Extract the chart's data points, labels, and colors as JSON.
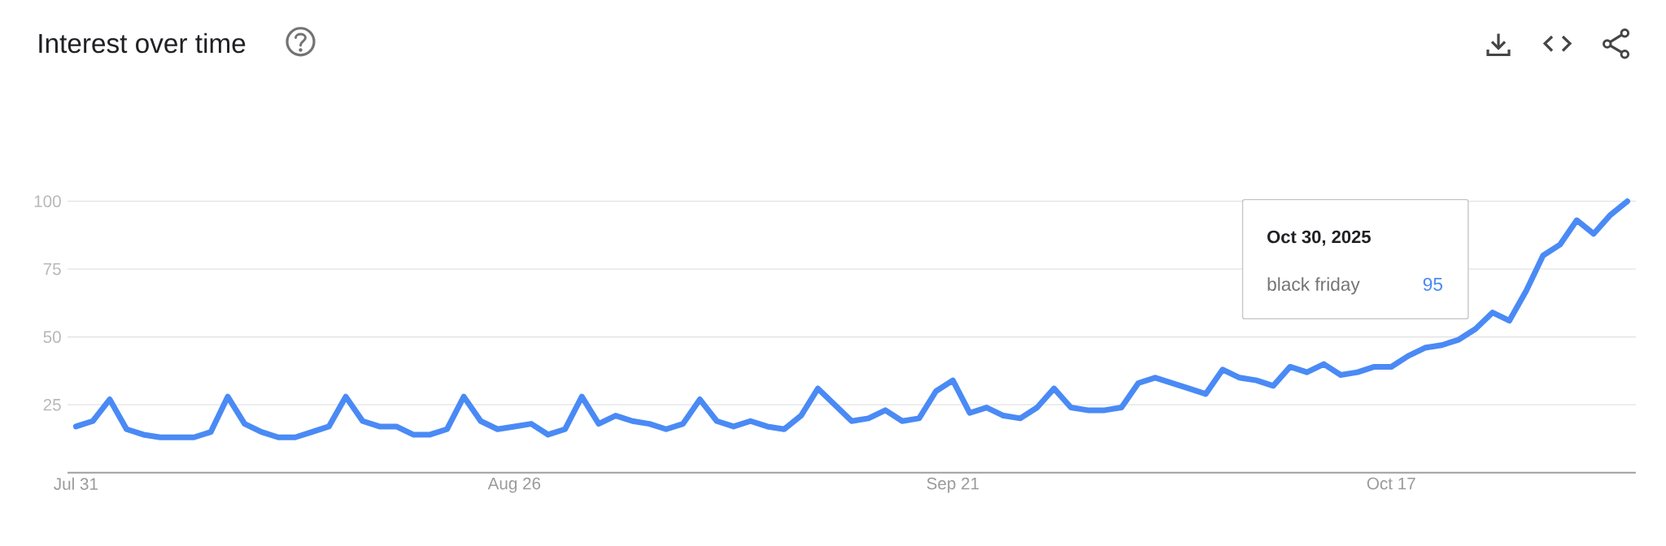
{
  "chart_data": {
    "type": "line",
    "title": "Interest over time",
    "x": [
      "2025-07-31",
      "2025-08-01",
      "2025-08-02",
      "2025-08-03",
      "2025-08-04",
      "2025-08-05",
      "2025-08-06",
      "2025-08-07",
      "2025-08-08",
      "2025-08-09",
      "2025-08-10",
      "2025-08-11",
      "2025-08-12",
      "2025-08-13",
      "2025-08-14",
      "2025-08-15",
      "2025-08-16",
      "2025-08-17",
      "2025-08-18",
      "2025-08-19",
      "2025-08-20",
      "2025-08-21",
      "2025-08-22",
      "2025-08-23",
      "2025-08-24",
      "2025-08-25",
      "2025-08-26",
      "2025-08-27",
      "2025-08-28",
      "2025-08-29",
      "2025-08-30",
      "2025-08-31",
      "2025-09-01",
      "2025-09-02",
      "2025-09-03",
      "2025-09-04",
      "2025-09-05",
      "2025-09-06",
      "2025-09-07",
      "2025-09-08",
      "2025-09-09",
      "2025-09-10",
      "2025-09-11",
      "2025-09-12",
      "2025-09-13",
      "2025-09-14",
      "2025-09-15",
      "2025-09-16",
      "2025-09-17",
      "2025-09-18",
      "2025-09-19",
      "2025-09-20",
      "2025-09-21",
      "2025-09-22",
      "2025-09-23",
      "2025-09-24",
      "2025-09-25",
      "2025-09-26",
      "2025-09-27",
      "2025-09-28",
      "2025-09-29",
      "2025-09-30",
      "2025-10-01",
      "2025-10-02",
      "2025-10-03",
      "2025-10-04",
      "2025-10-05",
      "2025-10-06",
      "2025-10-07",
      "2025-10-08",
      "2025-10-09",
      "2025-10-10",
      "2025-10-11",
      "2025-10-12",
      "2025-10-13",
      "2025-10-14",
      "2025-10-15",
      "2025-10-16",
      "2025-10-17",
      "2025-10-18",
      "2025-10-19",
      "2025-10-20",
      "2025-10-21",
      "2025-10-22",
      "2025-10-23",
      "2025-10-24",
      "2025-10-25",
      "2025-10-26",
      "2025-10-27",
      "2025-10-28",
      "2025-10-29",
      "2025-10-30",
      "2025-10-31"
    ],
    "values": [
      17,
      19,
      27,
      16,
      14,
      13,
      13,
      13,
      15,
      28,
      18,
      15,
      13,
      13,
      15,
      17,
      28,
      19,
      17,
      17,
      14,
      14,
      16,
      28,
      19,
      16,
      17,
      18,
      14,
      16,
      28,
      18,
      21,
      19,
      18,
      16,
      18,
      27,
      19,
      17,
      19,
      17,
      16,
      21,
      31,
      25,
      19,
      20,
      23,
      19,
      20,
      30,
      34,
      22,
      24,
      21,
      20,
      24,
      31,
      24,
      23,
      23,
      24,
      33,
      35,
      33,
      31,
      29,
      38,
      35,
      34,
      32,
      39,
      37,
      40,
      36,
      37,
      39,
      39,
      43,
      46,
      47,
      49,
      53,
      59,
      56,
      67,
      80,
      84,
      93,
      88,
      95,
      100
    ],
    "color": "#4a8af5",
    "xlim": [
      "2025-07-30T12:00",
      "2025-10-31T12:00"
    ],
    "xticks": [
      {
        "value": "2025-07-31",
        "label": "Jul 31"
      },
      {
        "value": "2025-08-26",
        "label": "Aug 26"
      },
      {
        "value": "2025-09-21",
        "label": "Sep 21"
      },
      {
        "value": "2025-10-17",
        "label": "Oct 17"
      }
    ],
    "ylim": [
      0,
      100
    ],
    "yticks": [
      25,
      50,
      75,
      100
    ],
    "grid": "y",
    "annotations": [
      "Oct 30, 2025",
      "black friday",
      "95"
    ]
  }
}
